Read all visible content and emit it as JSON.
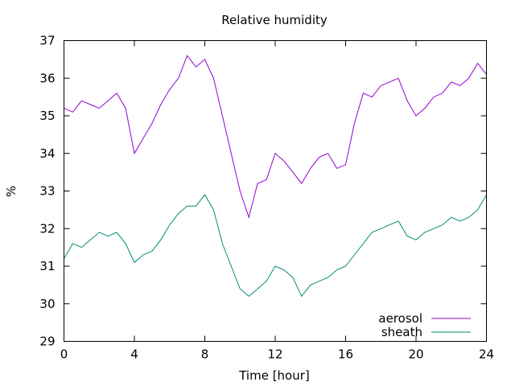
{
  "chart_data": {
    "type": "line",
    "title": "Relative humidity",
    "xlabel": "Time [hour]",
    "ylabel": "%",
    "xlim": [
      0,
      24
    ],
    "ylim": [
      29,
      37
    ],
    "x_ticks": [
      0,
      4,
      8,
      12,
      16,
      20,
      24
    ],
    "y_ticks": [
      29,
      30,
      31,
      32,
      33,
      34,
      35,
      36,
      37
    ],
    "grid": false,
    "legend_position": "bottom-right",
    "x": [
      0,
      0.5,
      1,
      1.5,
      2,
      2.5,
      3,
      3.5,
      4,
      4.5,
      5,
      5.5,
      6,
      6.5,
      7,
      7.5,
      8,
      8.5,
      9,
      9.5,
      10,
      10.5,
      11,
      11.5,
      12,
      12.5,
      13,
      13.5,
      14,
      14.5,
      15,
      15.5,
      16,
      16.5,
      17,
      17.5,
      18,
      18.5,
      19,
      19.5,
      20,
      20.5,
      21,
      21.5,
      22,
      22.5,
      23,
      23.5,
      24
    ],
    "series": [
      {
        "name": "aerosol",
        "color": "#9400d3",
        "values": [
          35.2,
          35.1,
          35.4,
          35.3,
          35.2,
          35.4,
          35.6,
          35.2,
          34.0,
          34.4,
          34.8,
          35.3,
          35.7,
          36.0,
          36.6,
          36.3,
          36.5,
          36.0,
          35.0,
          34.0,
          33.0,
          32.3,
          33.2,
          33.3,
          34.0,
          33.8,
          33.5,
          33.2,
          33.6,
          33.9,
          34.0,
          33.6,
          33.7,
          34.8,
          35.6,
          35.5,
          35.8,
          35.9,
          36.0,
          35.4,
          35.0,
          35.2,
          35.5,
          35.6,
          35.9,
          35.8,
          36.0,
          36.4,
          36.1
        ]
      },
      {
        "name": "sheath",
        "color": "#008c76",
        "values": [
          31.2,
          31.6,
          31.5,
          31.7,
          31.9,
          31.8,
          31.9,
          31.6,
          31.1,
          31.3,
          31.4,
          31.7,
          32.1,
          32.4,
          32.6,
          32.6,
          32.9,
          32.5,
          31.6,
          31.0,
          30.4,
          30.2,
          30.4,
          30.6,
          31.0,
          30.9,
          30.7,
          30.2,
          30.5,
          30.6,
          30.7,
          30.9,
          31.0,
          31.3,
          31.6,
          31.9,
          32.0,
          32.1,
          32.2,
          31.8,
          31.7,
          31.9,
          32.0,
          32.1,
          32.3,
          32.2,
          32.3,
          32.5,
          32.9
        ]
      }
    ]
  }
}
